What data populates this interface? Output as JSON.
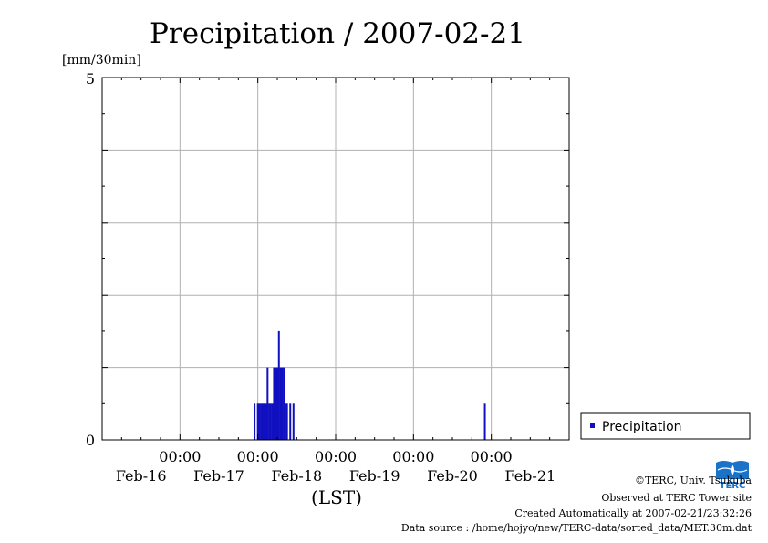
{
  "chart_data": {
    "type": "bar",
    "title": "Precipitation / 2007-02-21",
    "ylabel": "[mm/30min]",
    "xlabel": "(LST)",
    "ylim": [
      0,
      5
    ],
    "y_ticks": [
      "0",
      "5"
    ],
    "x_time_ticks": [
      "00:00",
      "00:00",
      "00:00",
      "00:00",
      "00:00"
    ],
    "x_date_ticks": [
      "Feb-16",
      "Feb-17",
      "Feb-18",
      "Feb-19",
      "Feb-20",
      "Feb-21"
    ],
    "xlim": [
      "2007-02-15 00:00",
      "2007-02-21 00:00"
    ],
    "grid": true,
    "legend_position": "right",
    "series": [
      {
        "name": "Precipitation",
        "color": "#1010c0",
        "points": [
          [
            "2007-02-16 23:00",
            0.5
          ],
          [
            "2007-02-17 00:00",
            0.5
          ],
          [
            "2007-02-17 00:30",
            0.5
          ],
          [
            "2007-02-17 01:00",
            0.5
          ],
          [
            "2007-02-17 01:30",
            0.5
          ],
          [
            "2007-02-17 02:00",
            0.5
          ],
          [
            "2007-02-17 02:30",
            0.5
          ],
          [
            "2007-02-17 03:00",
            1.0
          ],
          [
            "2007-02-17 03:30",
            0.5
          ],
          [
            "2007-02-17 04:00",
            0.5
          ],
          [
            "2007-02-17 04:30",
            0.5
          ],
          [
            "2007-02-17 05:00",
            1.0
          ],
          [
            "2007-02-17 05:30",
            1.0
          ],
          [
            "2007-02-17 06:00",
            1.0
          ],
          [
            "2007-02-17 06:30",
            1.5
          ],
          [
            "2007-02-17 07:00",
            1.0
          ],
          [
            "2007-02-17 07:30",
            1.0
          ],
          [
            "2007-02-17 08:00",
            1.0
          ],
          [
            "2007-02-17 08:30",
            0.5
          ],
          [
            "2007-02-17 09:00",
            0.5
          ],
          [
            "2007-02-17 10:00",
            0.5
          ],
          [
            "2007-02-17 11:00",
            0.5
          ],
          [
            "2007-02-19 22:00",
            0.5
          ]
        ]
      }
    ]
  },
  "credits": {
    "copyright": "©TERC, Univ. Tsukuba",
    "observed": "Observed at TERC Tower site",
    "created": "Created Automatically at 2007-02-21/23:32:26",
    "source": "Data source : /home/hojyo/new/TERC-data/sorted_data/MET.30m.dat"
  },
  "logo": {
    "text": "TERC",
    "color": "#1a73c8"
  }
}
